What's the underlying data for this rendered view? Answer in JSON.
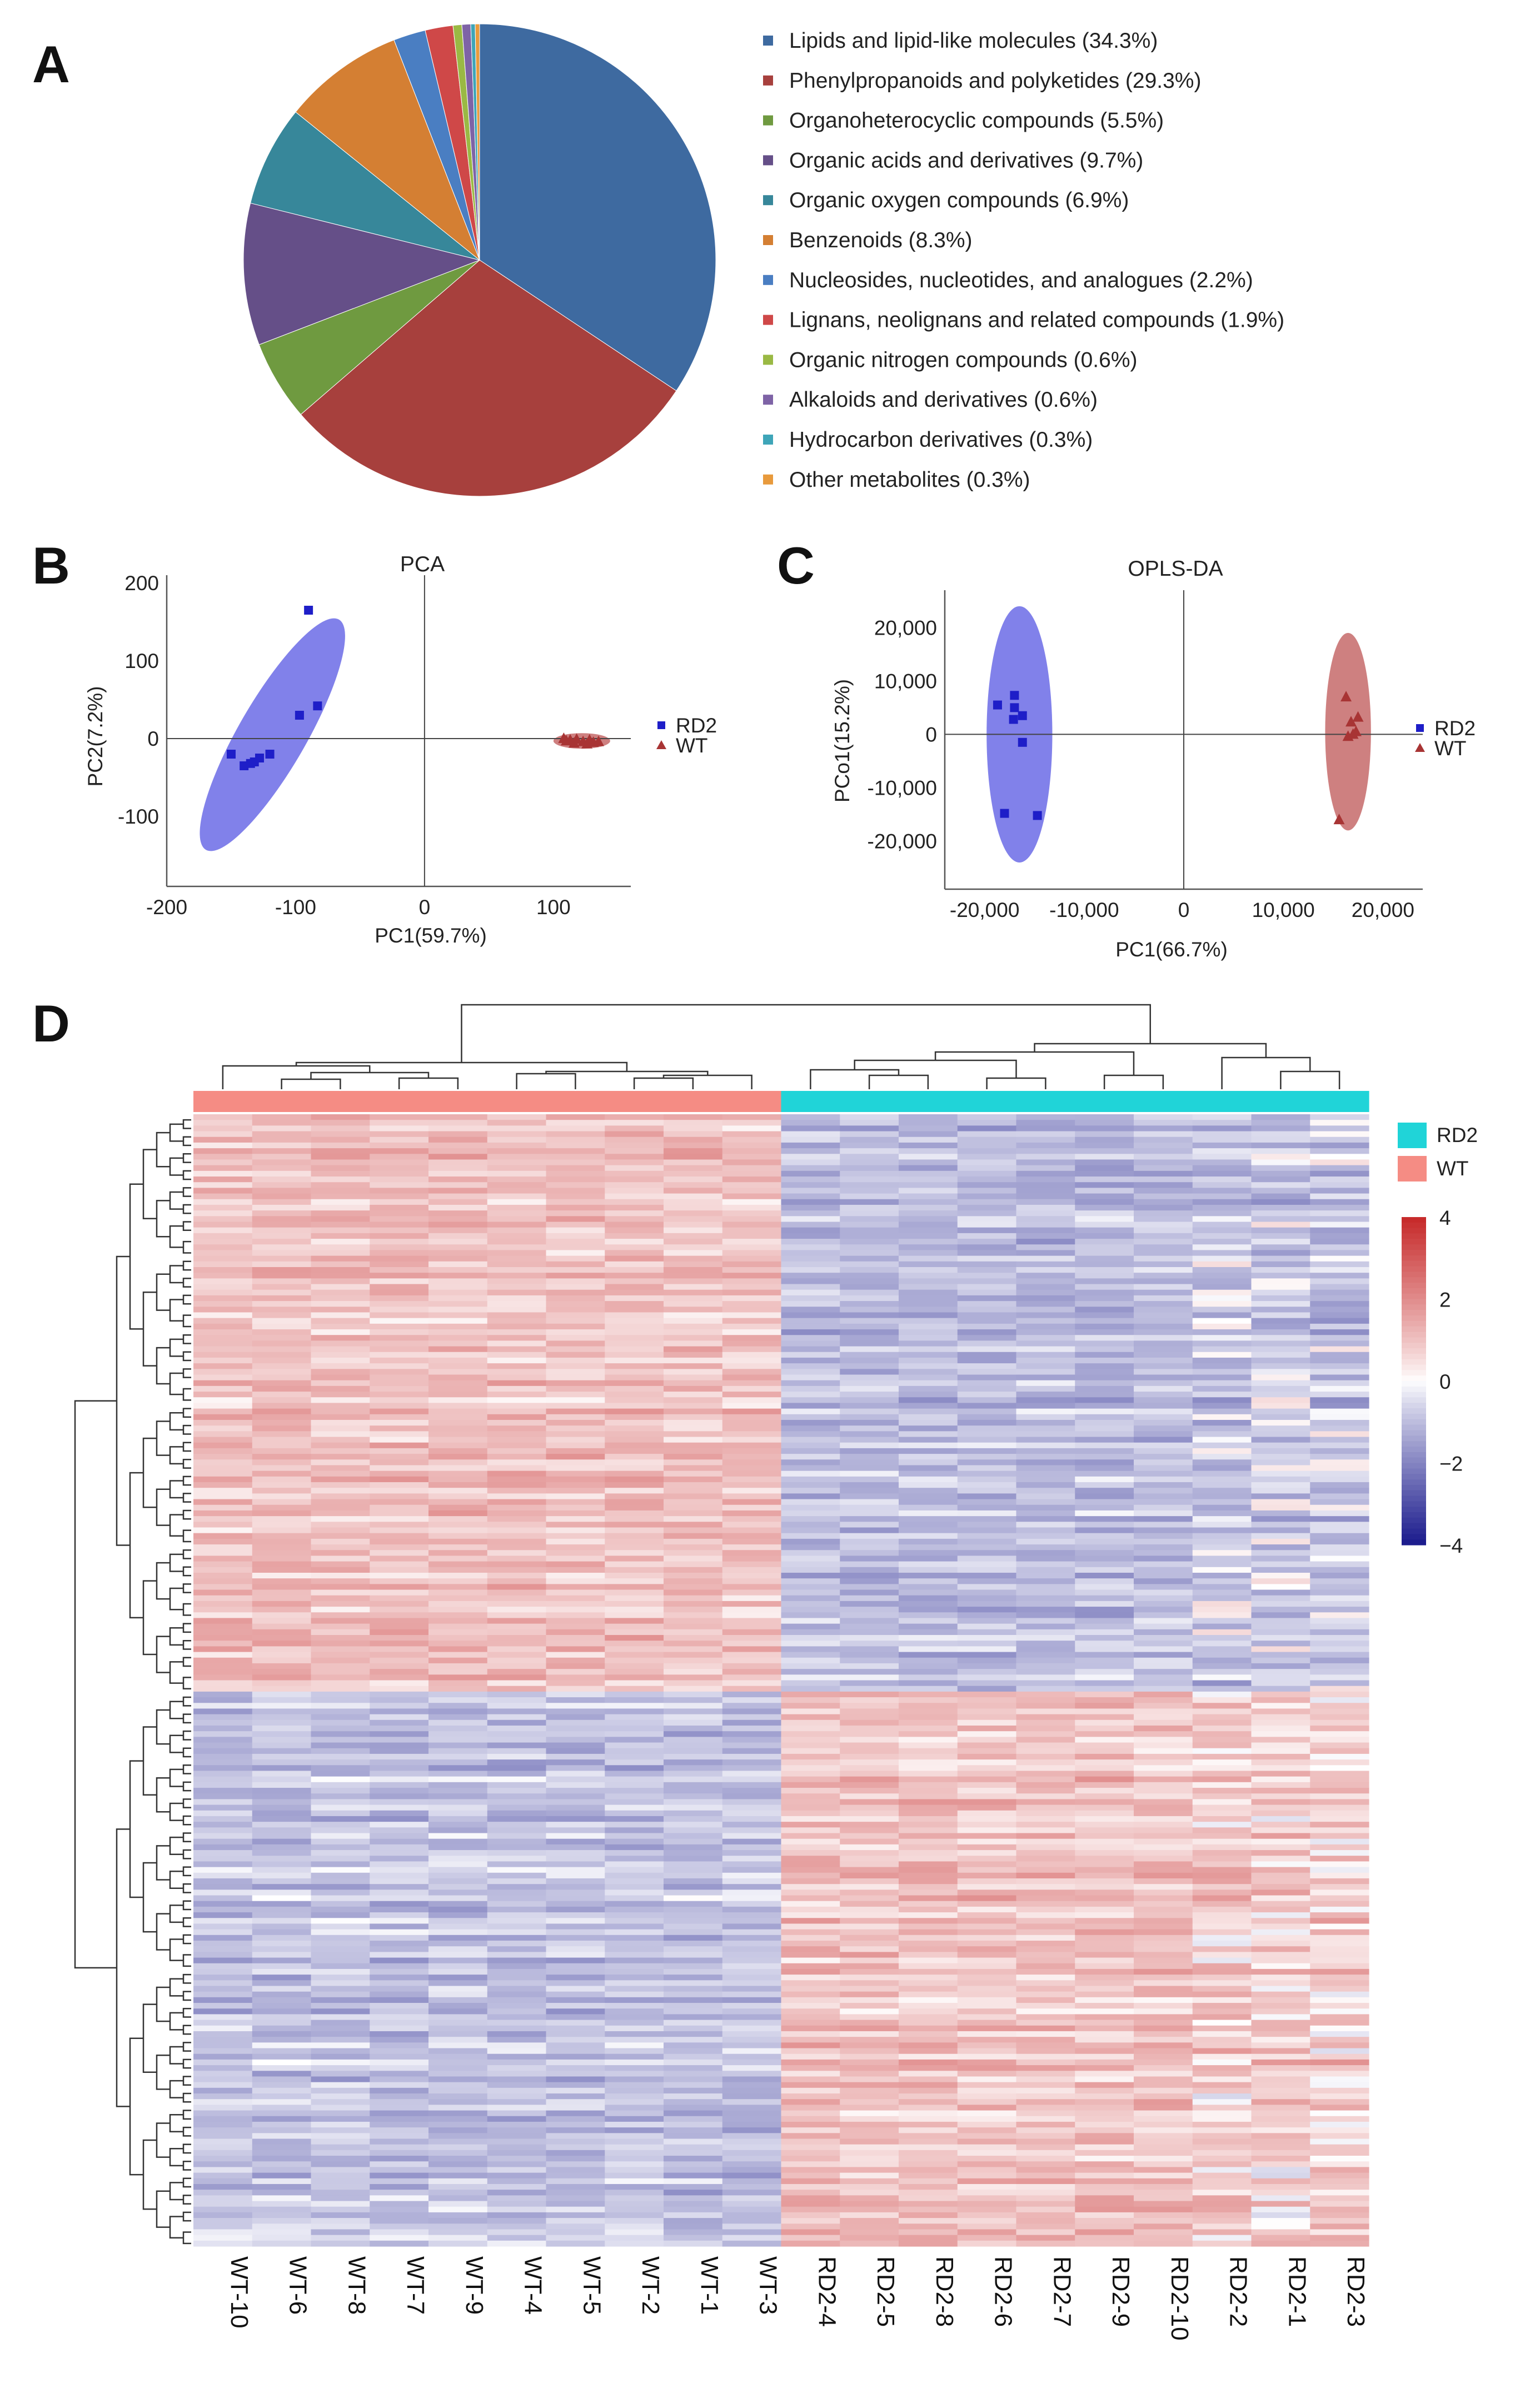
{
  "panels": {
    "a": "A",
    "b": "B",
    "c": "C",
    "d": "D"
  },
  "chart_data": [
    {
      "type": "pie",
      "panel": "A",
      "title": "",
      "slices": [
        {
          "label": "Lipids and lipid-like molecules (34.3%)",
          "value": 34.3,
          "color": "#3e6aa0"
        },
        {
          "label": "Phenylpropanoids and polyketides (29.3%)",
          "value": 29.3,
          "color": "#a7403d"
        },
        {
          "label": "Organoheterocyclic compounds (5.5%)",
          "value": 5.5,
          "color": "#6f9a40"
        },
        {
          "label": "Organic acids and derivatives (9.7%)",
          "value": 9.7,
          "color": "#654f88"
        },
        {
          "label": "Organic oxygen compounds (6.9%)",
          "value": 6.9,
          "color": "#37879a"
        },
        {
          "label": "Benzenoids (8.3%)",
          "value": 8.3,
          "color": "#d47f33"
        },
        {
          "label": "Nucleosides, nucleotides, and analogues (2.2%)",
          "value": 2.2,
          "color": "#4a7ec2"
        },
        {
          "label": "Lignans, neolignans and related compounds (1.9%)",
          "value": 1.9,
          "color": "#cf4848"
        },
        {
          "label": "Organic nitrogen compounds (0.6%)",
          "value": 0.6,
          "color": "#9ab944"
        },
        {
          "label": "Alkaloids and derivatives (0.6%)",
          "value": 0.6,
          "color": "#7e63a6"
        },
        {
          "label": "Hydrocarbon derivatives (0.3%)",
          "value": 0.3,
          "color": "#3ea5b8"
        },
        {
          "label": "Other metabolites (0.3%)",
          "value": 0.3,
          "color": "#e89a3c"
        }
      ]
    },
    {
      "type": "scatter",
      "panel": "B",
      "title": "PCA",
      "xlabel": "PC1(59.7%)",
      "ylabel": "PC2(7.2%)",
      "xlim": [
        -200,
        160
      ],
      "ylim": [
        -190,
        210
      ],
      "xticks": [
        -200,
        -100,
        0,
        100
      ],
      "xtick_labels": [
        "-200",
        "-100",
        "0",
        "100"
      ],
      "yticks": [
        200,
        100,
        0,
        -100
      ],
      "ytick_labels": [
        "200",
        "100",
        "0",
        "-100"
      ],
      "legend": [
        "RD2",
        "WT"
      ],
      "series": [
        {
          "name": "RD2",
          "color": "#1e1ec8",
          "ellipse_color": "#6b6be6",
          "marker": "square",
          "ellipse": {
            "cx": -118,
            "cy": 5,
            "rx": 165,
            "ry": 42,
            "angle_deg": 60
          },
          "points": [
            [
              -90,
              165
            ],
            [
              -83,
              42
            ],
            [
              -97,
              30
            ],
            [
              -150,
              -20
            ],
            [
              -120,
              -20
            ],
            [
              -128,
              -25
            ],
            [
              -135,
              -32
            ],
            [
              -140,
              -35
            ],
            [
              -132,
              -30
            ]
          ]
        },
        {
          "name": "WT",
          "color": "#a83434",
          "ellipse_color": "#c66a6a",
          "marker": "triangle",
          "ellipse": {
            "cx": 122,
            "cy": -3,
            "rx": 22,
            "ry": 10,
            "angle_deg": 0
          },
          "points": [
            [
              108,
              0
            ],
            [
              113,
              -2
            ],
            [
              118,
              -1
            ],
            [
              123,
              -4
            ],
            [
              128,
              -2
            ],
            [
              131,
              -5
            ],
            [
              116,
              -6
            ],
            [
              110,
              -3
            ],
            [
              126,
              -7
            ],
            [
              135,
              -4
            ]
          ]
        }
      ]
    },
    {
      "type": "scatter",
      "panel": "C",
      "title": "OPLS-DA",
      "xlabel": "PC1(66.7%)",
      "ylabel": "PCo1(15.2%)",
      "xlim": [
        -24000,
        24000
      ],
      "ylim": [
        -29000,
        27000
      ],
      "xticks": [
        -20000,
        -10000,
        0,
        10000,
        20000
      ],
      "xtick_labels": [
        "-20,000",
        "-10,000",
        "0",
        "10,000",
        "20,000"
      ],
      "yticks": [
        20000,
        10000,
        0,
        -10000,
        -20000
      ],
      "ytick_labels": [
        "20,000",
        "10,000",
        "0",
        "-10,000",
        "-20,000"
      ],
      "legend": [
        "RD2",
        "WT"
      ],
      "series": [
        {
          "name": "RD2",
          "color": "#1e1ec8",
          "ellipse_color": "#6b6be6",
          "marker": "square",
          "ellipse": {
            "cx": -16500,
            "cy": 0,
            "rx": 3300,
            "ry": 24000,
            "angle_deg": 0
          },
          "points": [
            [
              -18700,
              5500
            ],
            [
              -17000,
              7300
            ],
            [
              -17000,
              5000
            ],
            [
              -16200,
              3500
            ],
            [
              -17100,
              2800
            ],
            [
              -16200,
              -1500
            ],
            [
              -18000,
              -14800
            ],
            [
              -14700,
              -15200
            ]
          ]
        },
        {
          "name": "WT",
          "color": "#a83434",
          "ellipse_color": "#c66a6a",
          "marker": "triangle",
          "ellipse": {
            "cx": 16500,
            "cy": 500,
            "rx": 2300,
            "ry": 18500,
            "angle_deg": 0
          },
          "points": [
            [
              16300,
              7000
            ],
            [
              17500,
              3200
            ],
            [
              16800,
              2300
            ],
            [
              17000,
              0
            ],
            [
              16500,
              -400
            ],
            [
              17300,
              500
            ],
            [
              15600,
              -16000
            ]
          ]
        }
      ]
    },
    {
      "type": "heatmap",
      "panel": "D",
      "title": "",
      "columns": [
        "WT-10",
        "WT-6",
        "WT-8",
        "WT-7",
        "WT-9",
        "WT-4",
        "WT-5",
        "WT-2",
        "WT-1",
        "WT-3",
        "RD2-4",
        "RD2-5",
        "RD2-8",
        "RD2-6",
        "RD2-7",
        "RD2-9",
        "RD2-10",
        "RD2-2",
        "RD2-1",
        "RD2-3"
      ],
      "column_groups": [
        "WT",
        "WT",
        "WT",
        "WT",
        "WT",
        "WT",
        "WT",
        "WT",
        "WT",
        "WT",
        "RD2",
        "RD2",
        "RD2",
        "RD2",
        "RD2",
        "RD2",
        "RD2",
        "RD2",
        "RD2",
        "RD2"
      ],
      "group_legend": [
        {
          "name": "RD2",
          "color": "#20d4d8"
        },
        {
          "name": "WT",
          "color": "#f58c84"
        }
      ],
      "row_blocks": [
        {
          "metabolite_fraction": 0.51,
          "wt_mean": 1.0,
          "rd2_mean": -1.0
        },
        {
          "metabolite_fraction": 0.49,
          "wt_mean": -0.9,
          "rd2_mean": 1.0
        }
      ],
      "colorscale": {
        "min": -4,
        "max": 4,
        "ticks": [
          4,
          2,
          0,
          -2,
          -4
        ],
        "tick_labels": [
          "4",
          "2",
          "0",
          "−2",
          "−4"
        ],
        "low": "#1a1a8c",
        "mid": "#ffffff",
        "high": "#c62828"
      }
    }
  ]
}
